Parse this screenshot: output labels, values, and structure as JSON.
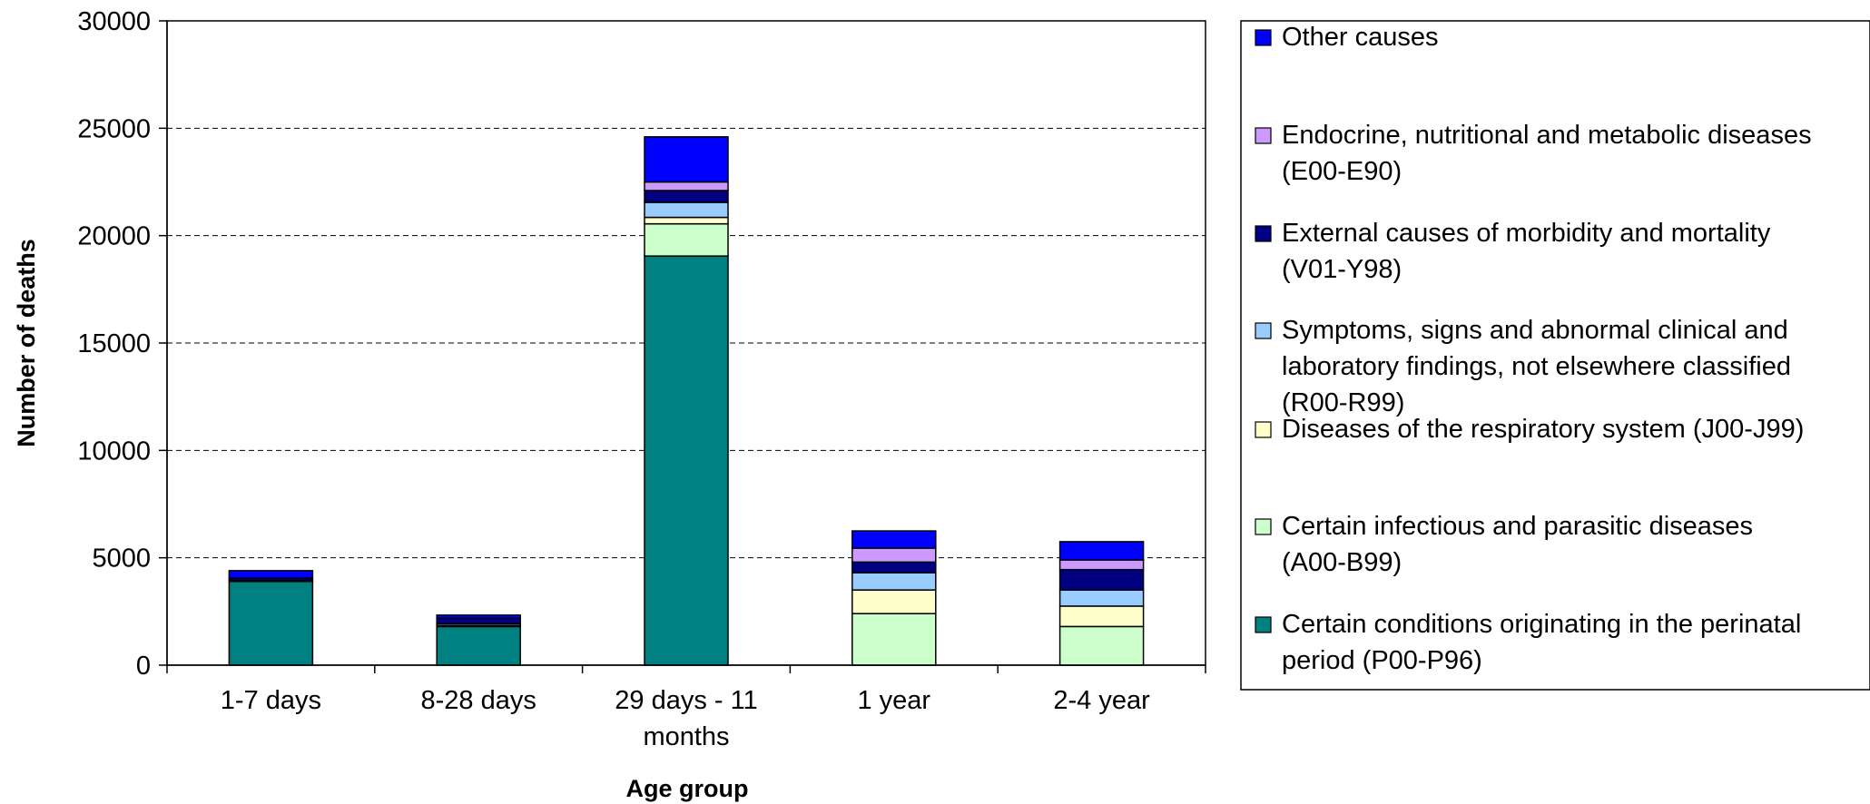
{
  "chart_data": {
    "type": "bar",
    "stacked": true,
    "xlabel": "Age group",
    "ylabel": "Number of deaths",
    "ylim": [
      0,
      30000
    ],
    "yticks": [
      0,
      5000,
      10000,
      15000,
      20000,
      25000,
      30000
    ],
    "grid": "horizontal dashed",
    "legend_position": "right",
    "categories": [
      [
        "1-7 days"
      ],
      [
        "8-28 days"
      ],
      [
        "29 days - 11",
        "months"
      ],
      [
        "1 year"
      ],
      [
        "2-4 year"
      ]
    ],
    "series": [
      {
        "name": [
          "Certain conditions originating in the perinatal",
          "period (P00-P96)"
        ],
        "color": "#008080",
        "values": [
          3900,
          1800,
          19050,
          0,
          0
        ]
      },
      {
        "name": [
          "Certain infectious and parasitic diseases",
          "(A00-B99)"
        ],
        "color": "#CCFFCC",
        "values": [
          0,
          50,
          1500,
          2400,
          1800
        ]
      },
      {
        "name": [
          "Diseases of the respiratory system (J00-J99)"
        ],
        "color": "#FFFFCC",
        "values": [
          0,
          0,
          300,
          1100,
          950
        ]
      },
      {
        "name": [
          "Symptoms, signs and abnormal clinical and",
          "laboratory findings, not elsewhere classified",
          "(R00-R99)"
        ],
        "color": "#99CCFF",
        "values": [
          50,
          80,
          700,
          800,
          750
        ]
      },
      {
        "name": [
          "External causes of morbidity and mortality",
          "(V01-Y98)"
        ],
        "color": "#000080",
        "values": [
          100,
          250,
          550,
          500,
          950
        ]
      },
      {
        "name": [
          "Endocrine, nutritional and metabolic diseases",
          "(E00-E90)"
        ],
        "color": "#CC99FF",
        "values": [
          0,
          0,
          400,
          650,
          450
        ]
      },
      {
        "name": [
          "Other causes"
        ],
        "color": "#0000FF",
        "values": [
          350,
          150,
          2100,
          800,
          850
        ]
      }
    ]
  }
}
